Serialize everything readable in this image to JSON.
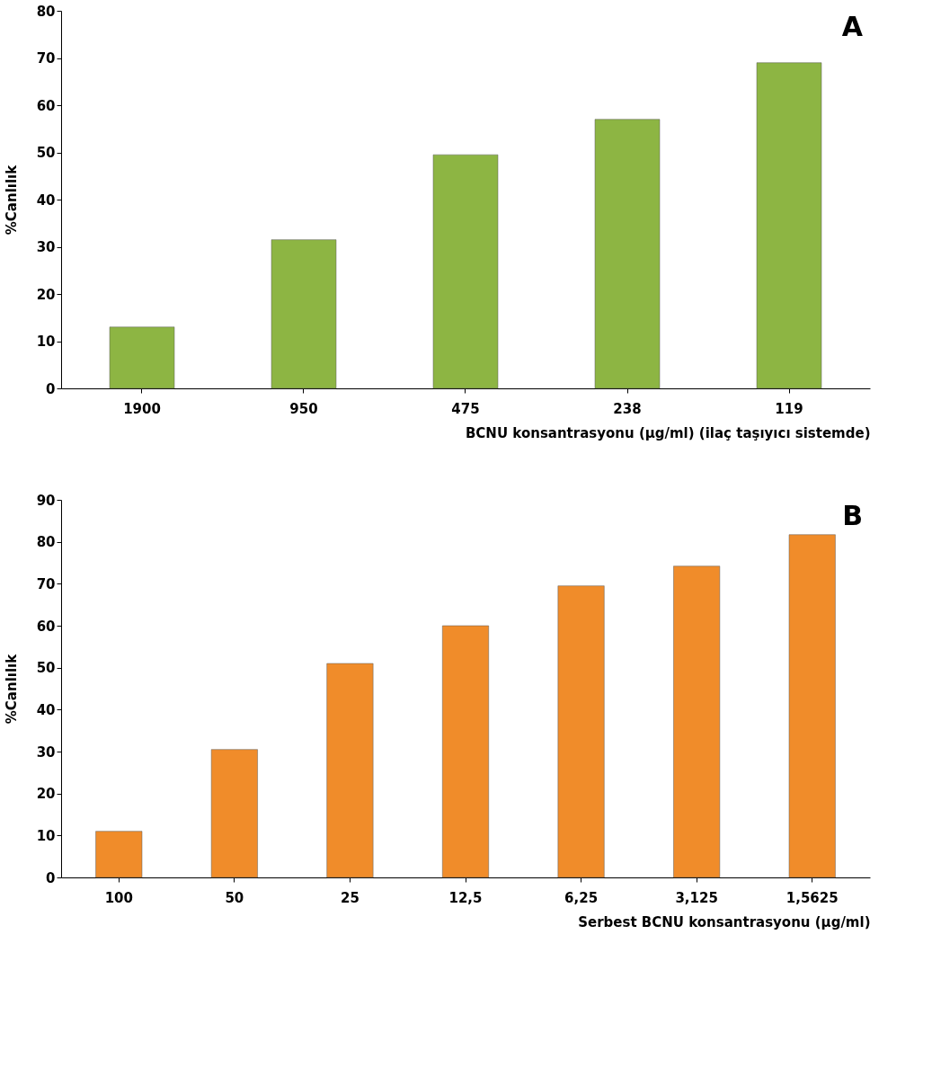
{
  "chart_data": [
    {
      "type": "bar",
      "categories": [
        "1900",
        "950",
        "475",
        "238",
        "119"
      ],
      "values": [
        13,
        31.5,
        49.5,
        57,
        69
      ],
      "color": "#8db543",
      "xlabel": "BCNU konsantrasyonu  (µg/ml) (ilaç taşıyıcı sistemde)",
      "ylabel": "%Canlılık",
      "ylim": [
        0,
        80
      ],
      "yticks": [
        0,
        10,
        20,
        30,
        40,
        50,
        60,
        70,
        80
      ],
      "grid": false,
      "annotations": [
        "A"
      ]
    },
    {
      "type": "bar",
      "categories": [
        "100",
        "50",
        "25",
        "12,5",
        "6,25",
        "3,125",
        "1,5625"
      ],
      "values": [
        11,
        30.5,
        51,
        60,
        69.5,
        74.2,
        81.7
      ],
      "color": "#f08c2a",
      "xlabel": "Serbest BCNU konsantrasyonu  (µg/ml)",
      "ylabel": "%Canlılık",
      "ylim": [
        0,
        90
      ],
      "yticks": [
        0,
        10,
        20,
        30,
        40,
        50,
        60,
        70,
        80,
        90
      ],
      "grid": false,
      "annotations": [
        "B"
      ]
    }
  ]
}
